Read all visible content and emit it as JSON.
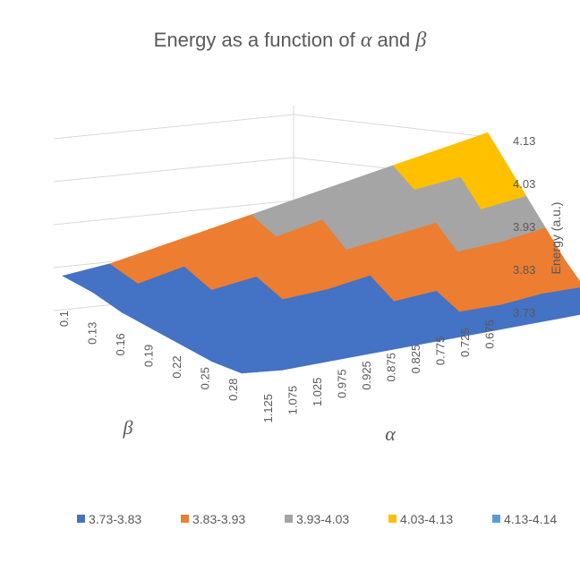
{
  "chart_data": {
    "type": "surface",
    "title_prefix": "Energy as a function of ",
    "title_alpha": "α",
    "title_and": " and ",
    "title_beta": "β",
    "xlabel": "α",
    "ylabel": "β",
    "zlabel": "Energy (a.u.)",
    "alpha_ticks": [
      "0.675",
      "0.725",
      "0.775",
      "0.825",
      "0.875",
      "0.925",
      "0.975",
      "1.025",
      "1.075",
      "1.125"
    ],
    "beta_ticks": [
      "0.1",
      "0.13",
      "0.16",
      "0.19",
      "0.22",
      "0.25",
      "0.28"
    ],
    "z_ticks": [
      "3.73",
      "3.83",
      "3.93",
      "4.03",
      "4.13"
    ],
    "zlim": [
      3.73,
      4.14
    ],
    "grid": true,
    "legend_position": "bottom",
    "bands": [
      {
        "label": "3.73-3.83",
        "color": "#4472c4"
      },
      {
        "label": "3.83-3.93",
        "color": "#ed7d31"
      },
      {
        "label": "3.93-4.03",
        "color": "#a5a5a5"
      },
      {
        "label": "4.03-4.13",
        "color": "#ffc000"
      },
      {
        "label": "4.13-4.14",
        "color": "#5b9bd5"
      }
    ],
    "alpha_values": [
      0.675,
      0.725,
      0.775,
      0.825,
      0.875,
      0.925,
      0.975,
      1.025,
      1.075,
      1.125
    ],
    "beta_values": [
      0.1,
      0.13,
      0.16,
      0.19,
      0.22,
      0.25,
      0.28
    ],
    "energy": [
      [
        4.14,
        4.1,
        4.06,
        4.02,
        3.98,
        3.94,
        3.9,
        3.86,
        3.82,
        3.79
      ],
      [
        4.08,
        4.05,
        4.02,
        3.98,
        3.95,
        3.91,
        3.87,
        3.84,
        3.8,
        3.78
      ],
      [
        4.02,
        3.99,
        3.96,
        3.93,
        3.9,
        3.87,
        3.84,
        3.81,
        3.78,
        3.76
      ],
      [
        3.96,
        3.93,
        3.91,
        3.88,
        3.86,
        3.83,
        3.81,
        3.79,
        3.76,
        3.75
      ],
      [
        3.9,
        3.88,
        3.86,
        3.84,
        3.82,
        3.8,
        3.78,
        3.77,
        3.75,
        3.74
      ],
      [
        3.85,
        3.84,
        3.82,
        3.81,
        3.79,
        3.78,
        3.76,
        3.75,
        3.74,
        3.73
      ],
      [
        3.81,
        3.8,
        3.79,
        3.78,
        3.77,
        3.76,
        3.75,
        3.74,
        3.73,
        3.73
      ]
    ]
  }
}
